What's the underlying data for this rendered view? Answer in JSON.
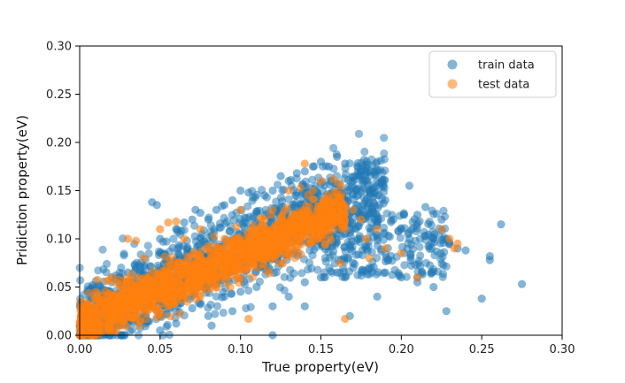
{
  "chart_data": {
    "type": "scatter",
    "xlabel": "True property(eV)",
    "ylabel": "Pridiction property(eV)",
    "xlim": [
      0,
      0.3
    ],
    "ylim": [
      0,
      0.3
    ],
    "x_ticks": [
      "0.00",
      "0.05",
      "0.10",
      "0.15",
      "0.20",
      "0.25",
      "0.30"
    ],
    "y_ticks": [
      "0.00",
      "0.05",
      "0.10",
      "0.15",
      "0.20",
      "0.25",
      "0.30"
    ],
    "grid": false,
    "legend_position": "top-right",
    "series": [
      {
        "name": "train data",
        "color": "#1f77b4",
        "points": [
          [
            0.0,
            0.01
          ],
          [
            0.002,
            0.03
          ],
          [
            0.005,
            0.045
          ],
          [
            0.008,
            0.052
          ],
          [
            0.01,
            0.02
          ],
          [
            0.015,
            0.04
          ],
          [
            0.02,
            0.055
          ],
          [
            0.02,
            0.005
          ],
          [
            0.025,
            0.06
          ],
          [
            0.03,
            0.065
          ],
          [
            0.03,
            0.012
          ],
          [
            0.035,
            0.07
          ],
          [
            0.04,
            0.072
          ],
          [
            0.04,
            0.015
          ],
          [
            0.045,
            0.138
          ],
          [
            0.048,
            0.135
          ],
          [
            0.05,
            0.1
          ],
          [
            0.05,
            0.02
          ],
          [
            0.055,
            0.078
          ],
          [
            0.06,
            0.11
          ],
          [
            0.06,
            0.025
          ],
          [
            0.065,
            0.117
          ],
          [
            0.07,
            0.12
          ],
          [
            0.07,
            0.028
          ],
          [
            0.072,
            0.13
          ],
          [
            0.075,
            0.127
          ],
          [
            0.08,
            0.12
          ],
          [
            0.08,
            0.02
          ],
          [
            0.082,
            0.01
          ],
          [
            0.085,
            0.13
          ],
          [
            0.09,
            0.135
          ],
          [
            0.09,
            0.04
          ],
          [
            0.095,
            0.14
          ],
          [
            0.1,
            0.15
          ],
          [
            0.1,
            0.045
          ],
          [
            0.105,
            0.148
          ],
          [
            0.11,
            0.128
          ],
          [
            0.11,
            0.05
          ],
          [
            0.115,
            0.145
          ],
          [
            0.12,
            0.15
          ],
          [
            0.12,
            0.03
          ],
          [
            0.125,
            0.165
          ],
          [
            0.13,
            0.16
          ],
          [
            0.13,
            0.04
          ],
          [
            0.135,
            0.168
          ],
          [
            0.14,
            0.17
          ],
          [
            0.14,
            0.055
          ],
          [
            0.145,
            0.175
          ],
          [
            0.15,
            0.18
          ],
          [
            0.15,
            0.06
          ],
          [
            0.155,
            0.175
          ],
          [
            0.16,
            0.185
          ],
          [
            0.16,
            0.065
          ],
          [
            0.165,
            0.178
          ],
          [
            0.168,
            0.02
          ],
          [
            0.17,
            0.16
          ],
          [
            0.17,
            0.075
          ],
          [
            0.175,
            0.17
          ],
          [
            0.18,
            0.15
          ],
          [
            0.18,
            0.07
          ],
          [
            0.185,
            0.145
          ],
          [
            0.19,
            0.14
          ],
          [
            0.19,
            0.065
          ],
          [
            0.195,
            0.12
          ],
          [
            0.2,
            0.11
          ],
          [
            0.2,
            0.06
          ],
          [
            0.205,
            0.1
          ],
          [
            0.21,
            0.125
          ],
          [
            0.21,
            0.055
          ],
          [
            0.215,
            0.133
          ],
          [
            0.22,
            0.1
          ],
          [
            0.22,
            0.05
          ],
          [
            0.225,
            0.12
          ],
          [
            0.228,
            0.025
          ],
          [
            0.23,
            0.095
          ],
          [
            0.235,
            0.09
          ],
          [
            0.24,
            0.088
          ],
          [
            0.25,
            0.038
          ],
          [
            0.255,
            0.082
          ],
          [
            0.255,
            0.078
          ],
          [
            0.262,
            0.115
          ],
          [
            0.275,
            0.053
          ],
          [
            0.205,
            0.155
          ],
          [
            0.21,
            0.06
          ],
          [
            0.185,
            0.04
          ],
          [
            0.165,
            0.06
          ],
          [
            0.05,
            0.005
          ],
          [
            0.06,
            0.012
          ],
          [
            0.095,
            0.025
          ],
          [
            0.12,
            0.0
          ],
          [
            0.14,
            0.03
          ]
        ]
      },
      {
        "name": "test data",
        "color": "#ff7f0e",
        "points": [
          [
            0.0,
            0.005
          ],
          [
            0.005,
            0.03
          ],
          [
            0.01,
            0.045
          ],
          [
            0.02,
            0.06
          ],
          [
            0.025,
            0.028
          ],
          [
            0.03,
            0.1
          ],
          [
            0.035,
            0.098
          ],
          [
            0.04,
            0.08
          ],
          [
            0.045,
            0.03
          ],
          [
            0.05,
            0.11
          ],
          [
            0.055,
            0.117
          ],
          [
            0.06,
            0.118
          ],
          [
            0.065,
            0.1
          ],
          [
            0.07,
            0.055
          ],
          [
            0.075,
            0.11
          ],
          [
            0.08,
            0.09
          ],
          [
            0.085,
            0.06
          ],
          [
            0.09,
            0.1
          ],
          [
            0.095,
            0.07
          ],
          [
            0.1,
            0.13
          ],
          [
            0.105,
            0.017
          ],
          [
            0.11,
            0.085
          ],
          [
            0.115,
            0.12
          ],
          [
            0.12,
            0.13
          ],
          [
            0.125,
            0.09
          ],
          [
            0.13,
            0.15
          ],
          [
            0.135,
            0.11
          ],
          [
            0.14,
            0.178
          ],
          [
            0.145,
            0.15
          ],
          [
            0.15,
            0.16
          ],
          [
            0.155,
            0.13
          ],
          [
            0.16,
            0.14
          ],
          [
            0.162,
            0.075
          ],
          [
            0.165,
            0.11
          ],
          [
            0.17,
            0.13
          ],
          [
            0.175,
            0.12
          ],
          [
            0.178,
            0.1
          ],
          [
            0.18,
            0.08
          ],
          [
            0.185,
            0.11
          ],
          [
            0.19,
            0.09
          ],
          [
            0.2,
            0.085
          ],
          [
            0.21,
            0.06
          ],
          [
            0.225,
            0.11
          ],
          [
            0.23,
            0.1
          ],
          [
            0.233,
            0.09
          ],
          [
            0.235,
            0.095
          ],
          [
            0.165,
            0.017
          ]
        ]
      }
    ]
  }
}
